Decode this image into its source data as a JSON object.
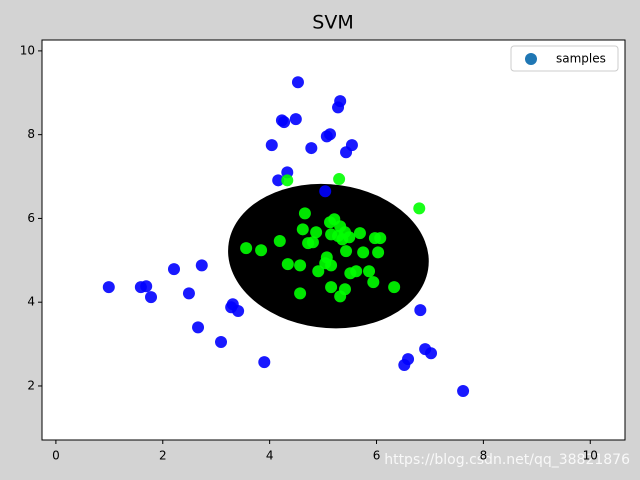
{
  "chart_data": {
    "type": "scatter",
    "title": "SVM",
    "xlim": [
      -0.26,
      10.65
    ],
    "ylim": [
      0.71,
      10.26
    ],
    "xticks": [
      0,
      2,
      4,
      6,
      8,
      10
    ],
    "yticks": [
      2,
      4,
      6,
      8,
      10
    ],
    "legend": "upper right",
    "region": {
      "center": [
        5.1,
        5.1
      ],
      "width": 3.8,
      "height": 3.4,
      "angle": -20,
      "color": "#000000"
    },
    "series": [
      {
        "name": "samples",
        "color": "#1f77b4",
        "x": [
          4.53,
          5.32,
          5.28,
          4.23,
          4.27,
          4.49,
          5.07,
          5.13,
          4.04,
          4.78,
          5.54,
          5.43,
          4.33,
          4.16,
          5.04,
          0.99,
          1.59,
          1.69,
          1.78,
          2.21,
          2.73,
          2.49,
          2.66,
          3.28,
          3.31,
          3.41,
          3.09,
          3.9,
          6.82,
          6.91,
          7.02,
          6.59,
          6.52,
          7.62,
          4.33,
          5.3,
          6.8,
          4.66,
          3.56,
          3.84,
          4.19,
          4.62,
          4.87,
          4.72,
          4.81,
          5.13,
          5.21,
          5.32,
          5.41,
          5.15,
          5.28,
          5.36,
          5.49,
          5.69,
          5.97,
          6.07,
          5.43,
          5.75,
          6.03,
          4.34,
          4.57,
          5.07,
          5.04,
          5.15,
          4.91,
          5.51,
          5.62,
          5.86,
          5.94,
          6.33,
          5.15,
          5.41,
          5.32,
          4.57
        ],
        "y": [
          9.25,
          8.8,
          8.65,
          8.34,
          8.3,
          8.37,
          7.96,
          8.01,
          7.75,
          7.68,
          7.75,
          7.58,
          7.1,
          6.91,
          6.65,
          4.36,
          4.36,
          4.38,
          4.12,
          4.79,
          4.88,
          4.21,
          3.4,
          3.88,
          3.95,
          3.79,
          3.05,
          2.57,
          3.81,
          2.88,
          2.78,
          2.64,
          2.5,
          1.88,
          6.91,
          6.94,
          6.24,
          6.12,
          5.29,
          5.24,
          5.46,
          5.74,
          5.67,
          5.41,
          5.43,
          5.91,
          5.98,
          5.81,
          5.67,
          5.62,
          5.58,
          5.5,
          5.55,
          5.65,
          5.53,
          5.53,
          5.22,
          5.19,
          5.19,
          4.91,
          4.88,
          5.07,
          4.93,
          4.88,
          4.74,
          4.69,
          4.74,
          4.74,
          4.48,
          4.36,
          4.36,
          4.31,
          4.14,
          4.21
        ],
        "colors": [
          "#0000ff",
          "#0000ff",
          "#0000ff",
          "#0000ff",
          "#0000ff",
          "#0000ff",
          "#0000ff",
          "#0000ff",
          "#0000ff",
          "#0000ff",
          "#0000ff",
          "#0000ff",
          "#0000ff",
          "#0000ff",
          "#0000ff",
          "#0000ff",
          "#0000ff",
          "#0000ff",
          "#0000ff",
          "#0000ff",
          "#0000ff",
          "#0000ff",
          "#0000ff",
          "#0000ff",
          "#0000ff",
          "#0000ff",
          "#0000ff",
          "#0000ff",
          "#0000ff",
          "#0000ff",
          "#0000ff",
          "#0000ff",
          "#0000ff",
          "#0000ff",
          "#00ff00",
          "#00ff00",
          "#00ff00",
          "#00ff00",
          "#00ff00",
          "#00ff00",
          "#00ff00",
          "#00ff00",
          "#00ff00",
          "#00ff00",
          "#00ff00",
          "#00ff00",
          "#00ff00",
          "#00ff00",
          "#00ff00",
          "#00ff00",
          "#00ff00",
          "#00ff00",
          "#00ff00",
          "#00ff00",
          "#00ff00",
          "#00ff00",
          "#00ff00",
          "#00ff00",
          "#00ff00",
          "#00ff00",
          "#00ff00",
          "#00ff00",
          "#00ff00",
          "#00ff00",
          "#00ff00",
          "#00ff00",
          "#00ff00",
          "#00ff00",
          "#00ff00",
          "#00ff00",
          "#00ff00",
          "#00ff00",
          "#00ff00",
          "#00ff00"
        ]
      }
    ],
    "watermark": "https://blog.csdn.net/qq_38821876"
  }
}
